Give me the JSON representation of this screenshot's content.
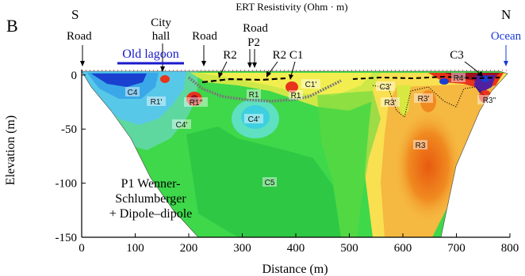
{
  "panel_letter": "B",
  "title": "ERT Resistivity (Ohm · m)",
  "direction_left": "S",
  "direction_right": "N",
  "x_axis": {
    "label": "Distance (m)",
    "ticks": [
      0,
      100,
      200,
      300,
      400,
      500,
      600,
      700,
      800
    ],
    "range": [
      0,
      800
    ]
  },
  "y_axis": {
    "label": "Elevation (m)",
    "ticks": [
      0,
      -50,
      -100,
      -150
    ],
    "range": [
      -150,
      5
    ]
  },
  "annotations": {
    "road_1": "Road",
    "city_hall": [
      "City",
      "hall"
    ],
    "old_lagoon": "Old lagoon",
    "road_2": "Road",
    "r2_left": "R2",
    "road_p2": [
      "Road",
      "P2"
    ],
    "r2_c1": "R2 C1",
    "c3_top": "C3",
    "ocean": "Ocean"
  },
  "method_label": [
    "P1 Wenner-",
    "Schlumberger",
    "+ Dipole–dipole"
  ],
  "zones": [
    "C4",
    "R1'",
    "R1''",
    "C4'",
    "C4'",
    "R1",
    "R1",
    "C1'",
    "C3'",
    "R3'",
    "R3'",
    "R4",
    "R3''",
    "R3",
    "C5"
  ],
  "colors": {
    "lagoon_blue": "#1a1acc",
    "ocean_blue": "#1a3ad8"
  }
}
